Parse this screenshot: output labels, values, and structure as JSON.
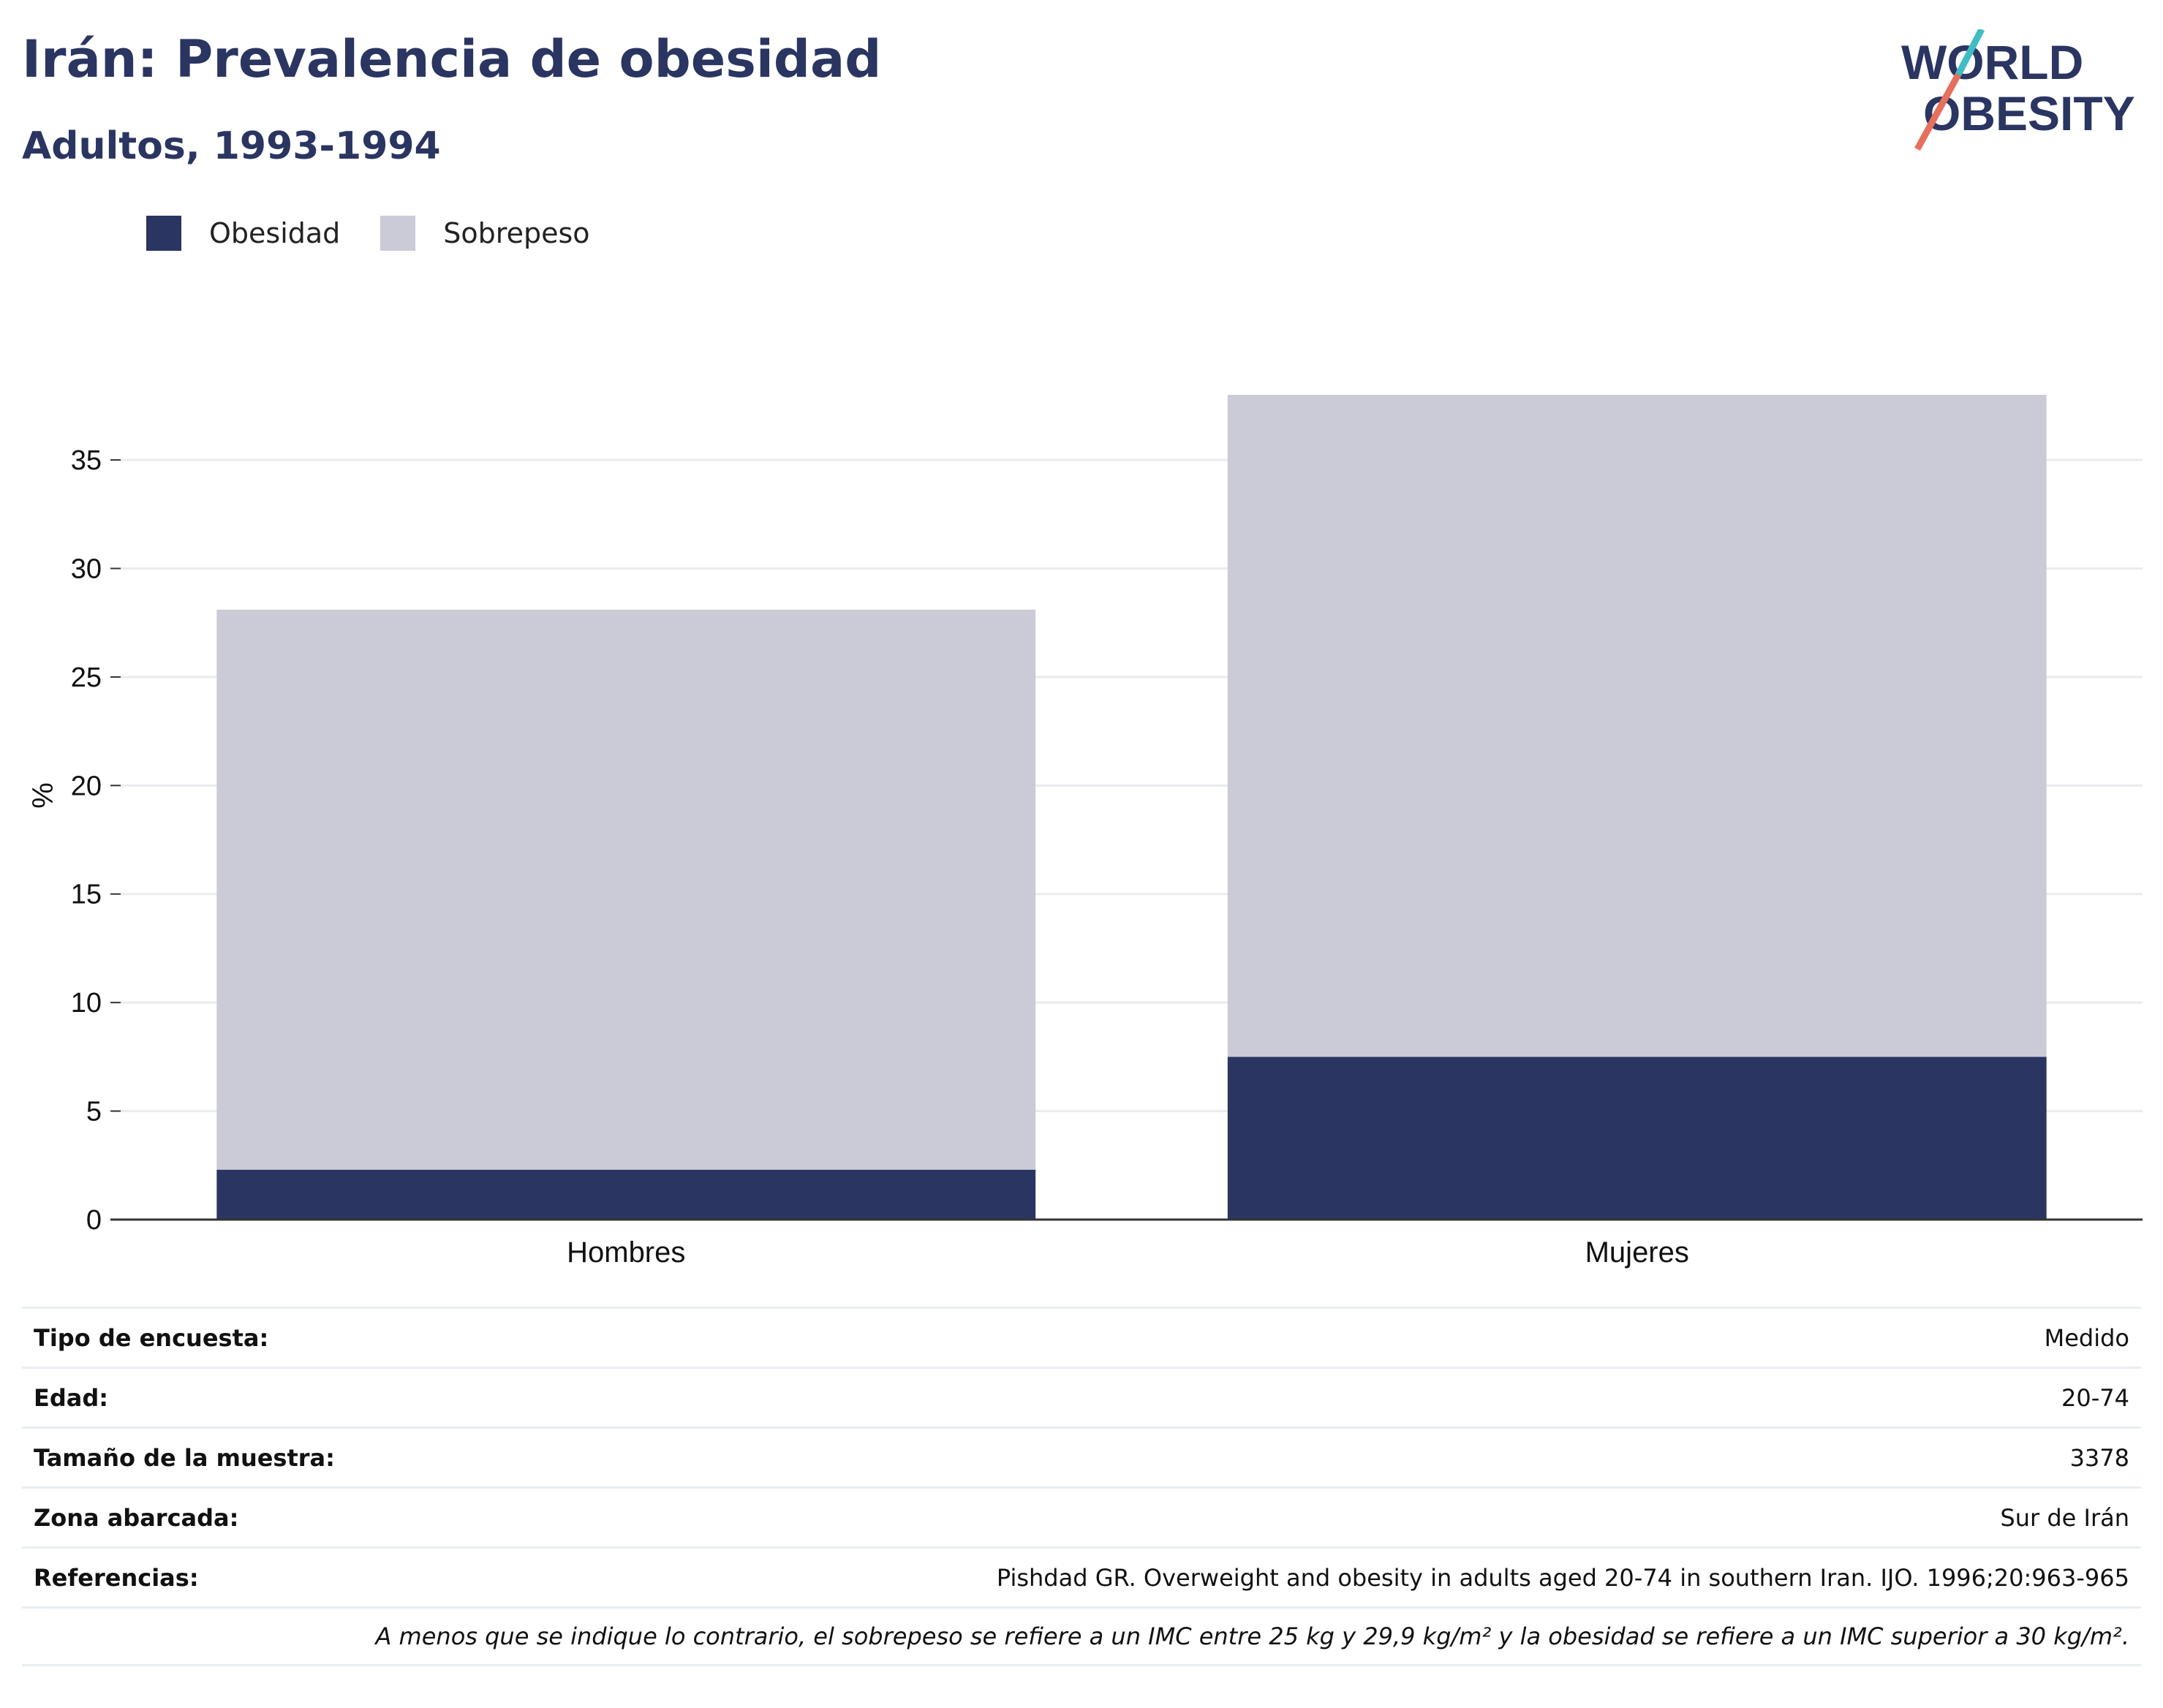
{
  "header": {
    "title": "Irán: Prevalencia de obesidad",
    "subtitle": "Adultos, 1993-1994"
  },
  "logo": {
    "line1": "WORLD",
    "line2": "OBESITY",
    "accent_teal": "#3fbcc4",
    "accent_coral": "#e5705c"
  },
  "colors": {
    "obesity": "#2a3562",
    "overweight": "#cacbd6",
    "gridline": "#e9ebee",
    "axis": "#333333"
  },
  "chart_data": {
    "type": "bar",
    "stacked": true,
    "categories": [
      "Hombres",
      "Mujeres"
    ],
    "series": [
      {
        "name": "Obesidad",
        "values": [
          2.3,
          7.5
        ]
      },
      {
        "name": "Sobrepeso",
        "values": [
          25.8,
          30.5
        ]
      }
    ],
    "ylabel": "%",
    "ylim": [
      0,
      38
    ],
    "yticks": [
      0,
      5,
      10,
      15,
      20,
      25,
      30,
      35
    ],
    "grid": true,
    "legend_position": "top-left"
  },
  "info_table": {
    "rows": [
      {
        "label": "Tipo de encuesta:",
        "value": "Medido"
      },
      {
        "label": "Edad:",
        "value": "20-74"
      },
      {
        "label": "Tamaño de la muestra:",
        "value": "3378"
      },
      {
        "label": "Zona abarcada:",
        "value": "Sur de Irán"
      },
      {
        "label": "Referencias:",
        "value": "Pishdad GR. Overweight and obesity in adults aged 20-74 in southern Iran. IJO. 1996;20:963-965"
      }
    ],
    "note": "A menos que se indique lo contrario, el sobrepeso se refiere a un IMC entre 25 kg y 29,9 kg/m² y la obesidad se refiere a un IMC superior a 30 kg/m²."
  }
}
